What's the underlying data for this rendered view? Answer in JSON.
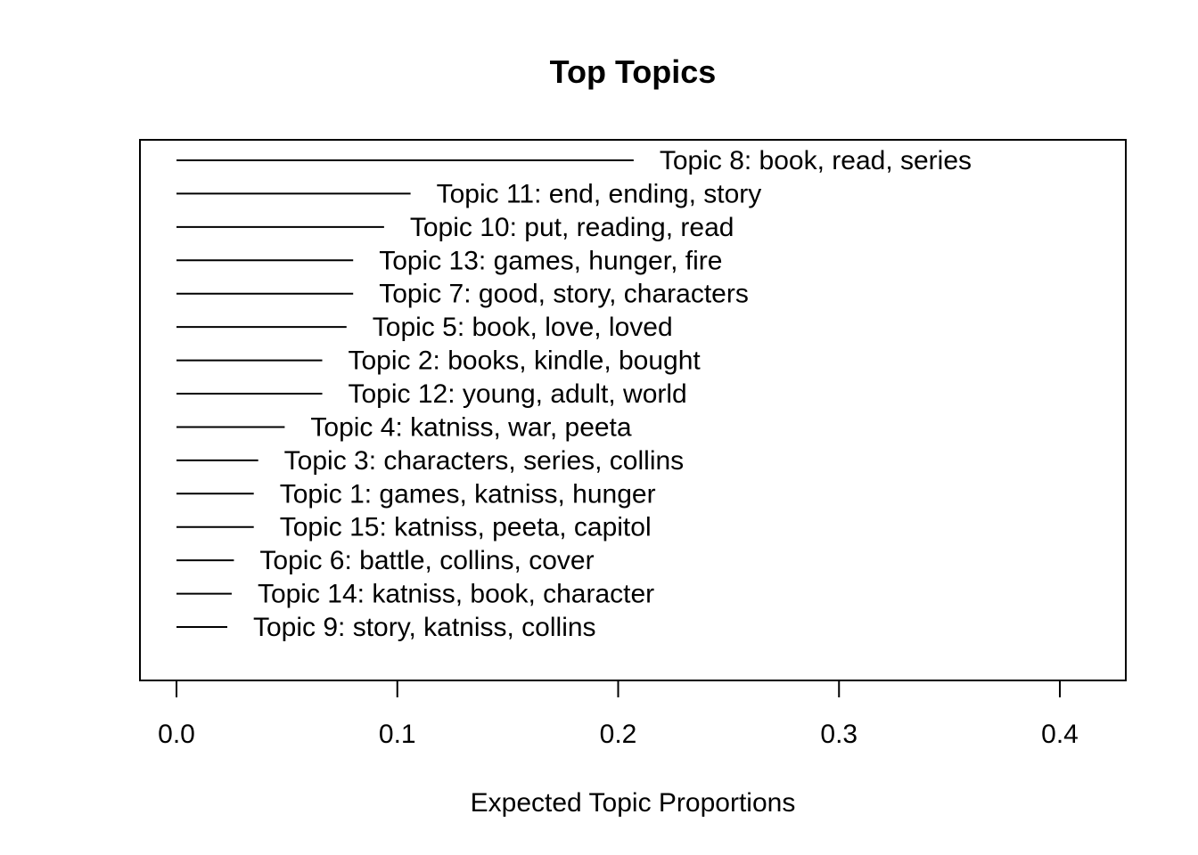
{
  "chart_data": {
    "type": "bar",
    "orientation": "horizontal",
    "title": "Top Topics",
    "xlabel": "Expected Topic Proportions",
    "ylabel": "",
    "xlim": [
      0.0,
      0.4
    ],
    "xticks": [
      "0.0",
      "0.1",
      "0.2",
      "0.3",
      "0.4"
    ],
    "xtick_values": [
      0.0,
      0.1,
      0.2,
      0.3,
      0.4
    ],
    "grid": false,
    "legend": "none",
    "categories": [
      "Topic 8: book, read, series",
      "Topic 11: end, ending, story",
      "Topic 10: put, reading, read",
      "Topic 13: games, hunger, fire",
      "Topic 7: good, story, characters",
      "Topic 5: book, love, loved",
      "Topic 2: books, kindle, bought",
      "Topic 12: young, adult, world",
      "Topic 4: katniss, war, peeta",
      "Topic 3: characters, series, collins",
      "Topic 1: games, katniss, hunger",
      "Topic 15: katniss, peeta, capitol",
      "Topic 6: battle, collins, cover",
      "Topic 14: katniss, book, character",
      "Topic 9: story, katniss, collins"
    ],
    "values": [
      0.207,
      0.106,
      0.094,
      0.08,
      0.08,
      0.077,
      0.066,
      0.066,
      0.049,
      0.037,
      0.035,
      0.035,
      0.026,
      0.025,
      0.023
    ],
    "line_color": "#000000"
  }
}
